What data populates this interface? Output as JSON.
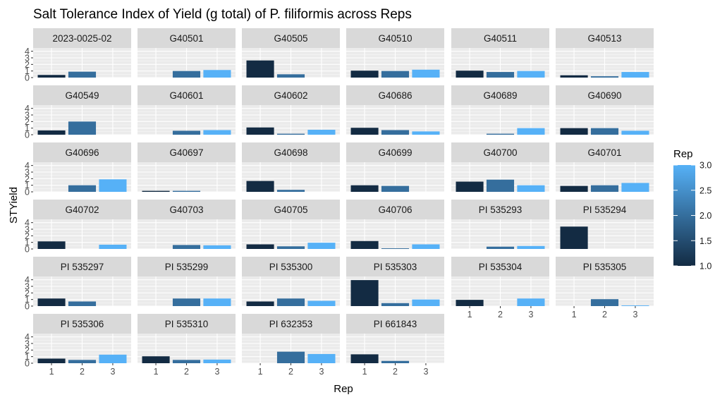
{
  "chart_data": {
    "type": "bar",
    "title": "Salt Tolerance Index of Yield (g total) of P. filiformis across Reps",
    "xlabel": "Rep",
    "ylabel": "STYield",
    "x_ticks": [
      "1",
      "2",
      "3"
    ],
    "y_ticks": [
      "0",
      "1",
      "2",
      "3",
      "4"
    ],
    "ylim": [
      0,
      4.5
    ],
    "facet_columns": 6,
    "grid": true,
    "legend": {
      "title": "Rep",
      "position": "right",
      "type": "continuous-colorbar",
      "range": [
        1.0,
        3.0
      ],
      "ticks": [
        "1.0",
        "1.5",
        "2.0",
        "2.5",
        "3.0"
      ],
      "color_low": "#132B43",
      "color_high": "#56B1F7"
    },
    "categories": [
      1,
      2,
      3
    ],
    "panels": [
      {
        "name": "2023-0025-02",
        "values": [
          0.4,
          0.9,
          null
        ]
      },
      {
        "name": "G40501",
        "values": [
          null,
          1.0,
          1.15
        ]
      },
      {
        "name": "G40505",
        "values": [
          2.6,
          0.5,
          null
        ]
      },
      {
        "name": "G40510",
        "values": [
          1.05,
          1.0,
          1.2
        ]
      },
      {
        "name": "G40511",
        "values": [
          1.05,
          0.85,
          1.0
        ]
      },
      {
        "name": "G40513",
        "values": [
          0.35,
          0.2,
          0.85
        ]
      },
      {
        "name": "G40549",
        "values": [
          0.65,
          2.0,
          null
        ]
      },
      {
        "name": "G40601",
        "values": [
          null,
          0.6,
          0.7
        ]
      },
      {
        "name": "G40602",
        "values": [
          1.1,
          0.15,
          0.75
        ]
      },
      {
        "name": "G40686",
        "values": [
          1.05,
          0.7,
          0.5
        ]
      },
      {
        "name": "G40689",
        "values": [
          null,
          0.15,
          1.0
        ]
      },
      {
        "name": "G40690",
        "values": [
          1.0,
          1.0,
          0.6
        ]
      },
      {
        "name": "G40696",
        "values": [
          null,
          1.0,
          1.9
        ]
      },
      {
        "name": "G40697",
        "values": [
          0.15,
          0.15,
          null
        ]
      },
      {
        "name": "G40698",
        "values": [
          1.65,
          0.3,
          null
        ]
      },
      {
        "name": "G40699",
        "values": [
          1.0,
          0.9,
          null
        ]
      },
      {
        "name": "G40700",
        "values": [
          1.55,
          1.85,
          1.0
        ]
      },
      {
        "name": "G40701",
        "values": [
          0.9,
          1.0,
          1.35
        ]
      },
      {
        "name": "G40702",
        "values": [
          1.15,
          null,
          0.65
        ]
      },
      {
        "name": "G40703",
        "values": [
          null,
          0.6,
          0.55
        ]
      },
      {
        "name": "G40705",
        "values": [
          0.7,
          0.4,
          0.95
        ]
      },
      {
        "name": "G40706",
        "values": [
          1.2,
          0.1,
          0.7
        ]
      },
      {
        "name": "PI 535293",
        "values": [
          null,
          0.35,
          0.45
        ]
      },
      {
        "name": "PI 535294",
        "values": [
          3.4,
          null,
          null
        ]
      },
      {
        "name": "PI 535297",
        "values": [
          1.15,
          0.7,
          null
        ]
      },
      {
        "name": "PI 535299",
        "values": [
          null,
          1.15,
          1.15
        ]
      },
      {
        "name": "PI 535300",
        "values": [
          0.7,
          1.15,
          0.8
        ]
      },
      {
        "name": "PI 535303",
        "values": [
          3.95,
          0.45,
          1.0
        ]
      },
      {
        "name": "PI 535304",
        "values": [
          0.95,
          null,
          1.15
        ]
      },
      {
        "name": "PI 535305",
        "values": [
          null,
          1.05,
          0.1
        ]
      },
      {
        "name": "PI 535306",
        "values": [
          0.7,
          0.5,
          1.3
        ]
      },
      {
        "name": "PI 535310",
        "values": [
          1.05,
          0.5,
          0.55
        ]
      },
      {
        "name": "PI 632353",
        "values": [
          null,
          1.75,
          1.4
        ]
      },
      {
        "name": "PI 661843",
        "values": [
          1.35,
          0.35,
          null
        ]
      }
    ]
  }
}
